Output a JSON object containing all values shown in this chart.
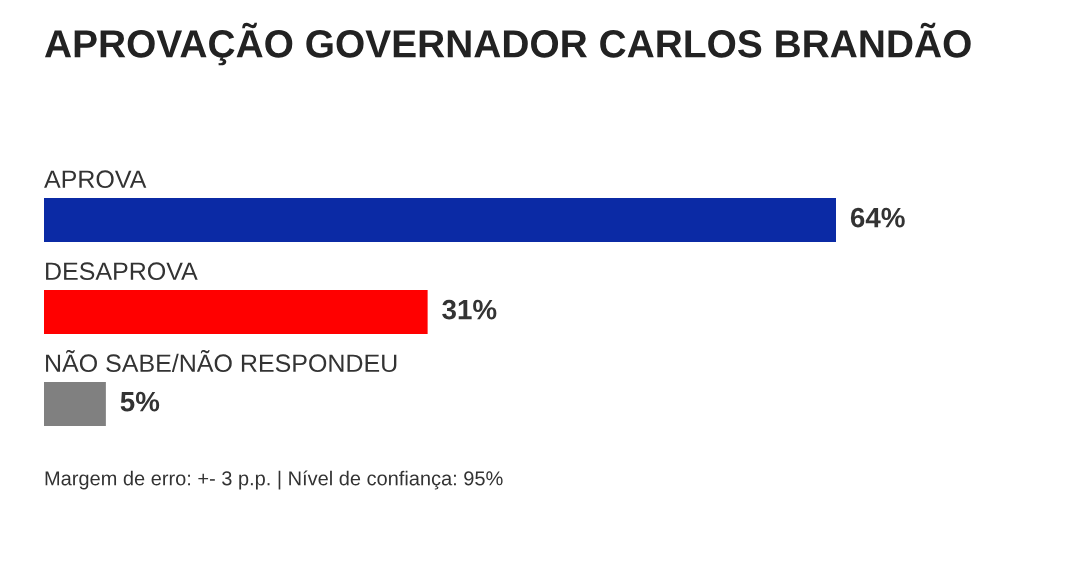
{
  "chart_data": {
    "type": "bar",
    "orientation": "horizontal",
    "title": "APROVAÇÃO GOVERNADOR CARLOS BRANDÃO",
    "categories": [
      "APROVA",
      "DESAPROVA",
      "NÃO SABE/NÃO RESPONDEU"
    ],
    "values": [
      64,
      31,
      5
    ],
    "colors": [
      "#0b2aa5",
      "#ff0000",
      "#808080"
    ],
    "value_labels": [
      "64%",
      "31%",
      "5%"
    ],
    "annotations": [
      "Margem de erro: +- 3 p.p. | Nível de confiança: 95%"
    ]
  }
}
